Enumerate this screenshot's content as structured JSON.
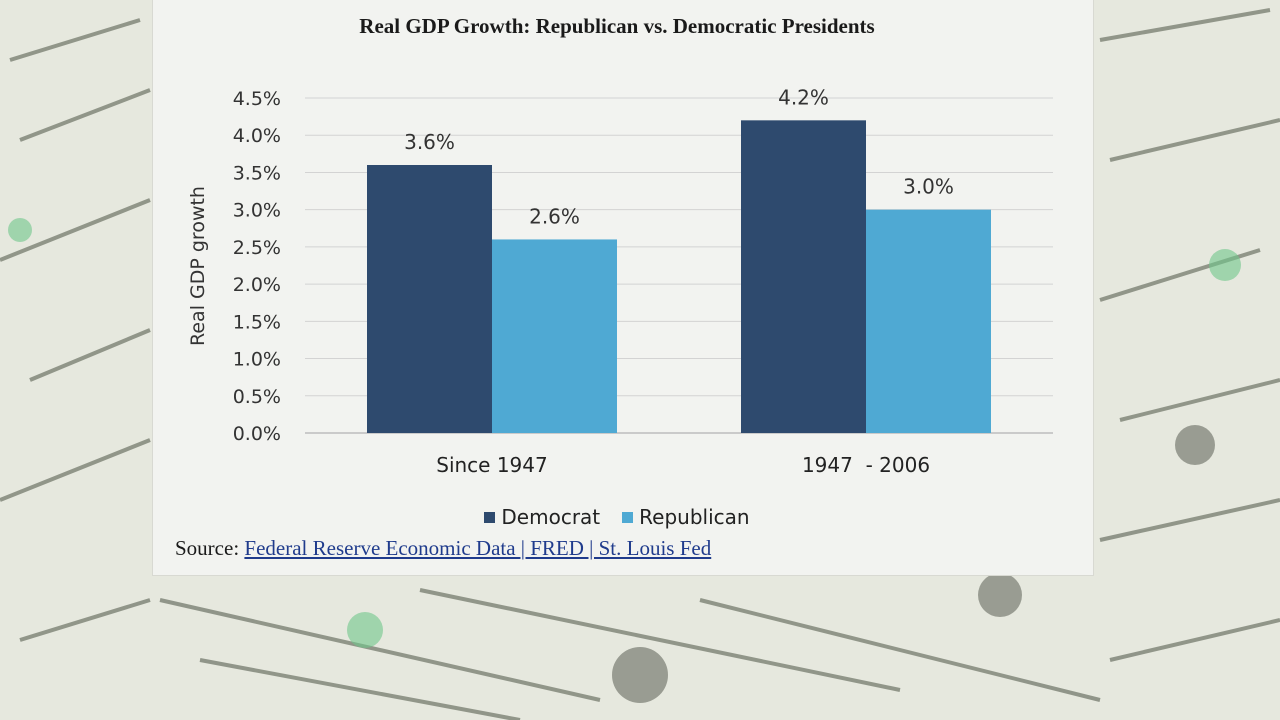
{
  "chart_data": {
    "type": "bar",
    "title": "Real GDP Growth: Republican vs. Democratic Presidents",
    "xlabel": "",
    "ylabel": "Real GDP growth",
    "ylim": [
      0,
      4.5
    ],
    "yticks": [
      "0.0%",
      "0.5%",
      "1.0%",
      "1.5%",
      "2.0%",
      "2.5%",
      "3.0%",
      "3.5%",
      "4.0%",
      "4.5%"
    ],
    "categories": [
      "Since 1947",
      "1947  - 2006"
    ],
    "series": [
      {
        "name": "Democrat",
        "values": [
          3.6,
          4.2
        ],
        "labels": [
          "3.6%",
          "4.2%"
        ],
        "color": "#2e4a6e"
      },
      {
        "name": "Republican",
        "values": [
          2.6,
          3.0
        ],
        "labels": [
          "2.6%",
          "3.0%"
        ],
        "color": "#4fa9d3"
      }
    ],
    "grid": true,
    "legend_position": "bottom"
  },
  "source": {
    "prefix": "Source: ",
    "link_text": "Federal Reserve Economic Data | FRED | St. Louis Fed"
  }
}
